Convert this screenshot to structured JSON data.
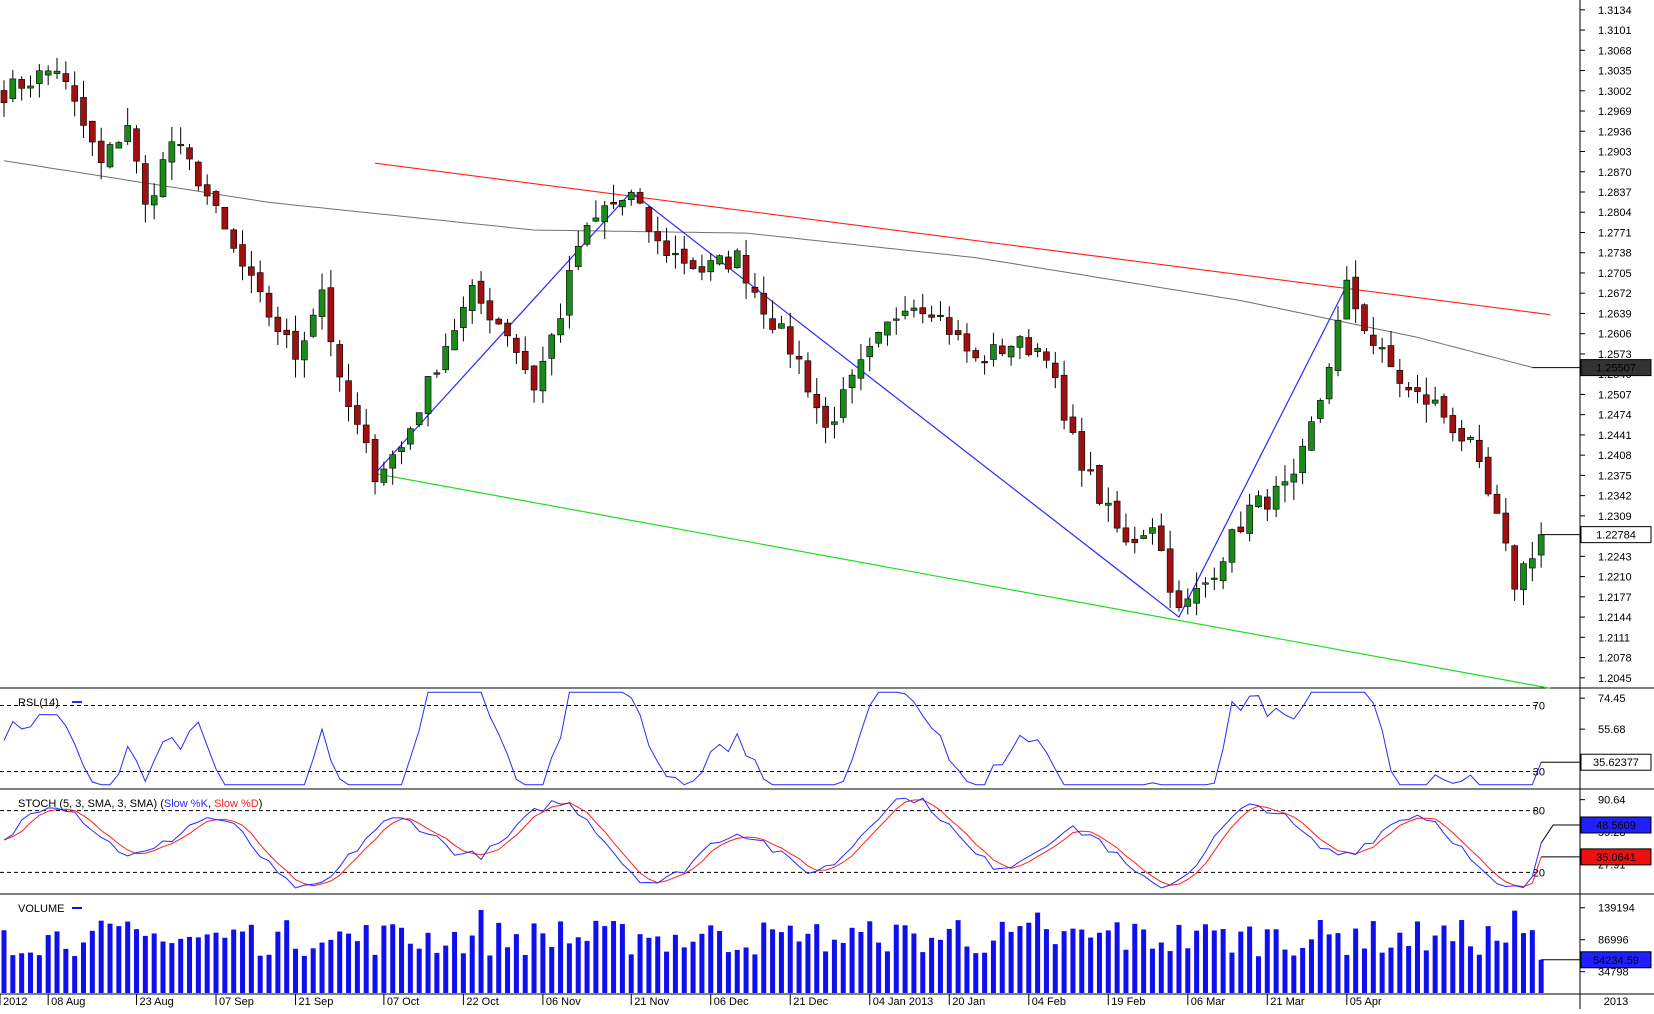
{
  "chart_data": {
    "type": "candlestick",
    "main": {
      "yticks": [
        "1.3134",
        "1.3101",
        "1.3068",
        "1.3035",
        "1.3002",
        "1.2969",
        "1.2936",
        "1.2903",
        "1.2870",
        "1.2837",
        "1.2804",
        "1.2771",
        "1.2738",
        "1.2705",
        "1.2672",
        "1.2639",
        "1.2606",
        "1.2573",
        "1.2540",
        "1.2507",
        "1.2474",
        "1.2441",
        "1.2408",
        "1.2375",
        "1.2342",
        "1.2309",
        "1.2276",
        "1.2243",
        "1.2210",
        "1.2177",
        "1.2144",
        "1.2111",
        "1.2078",
        "1.2045"
      ],
      "ylim": [
        1.203,
        1.315
      ],
      "ma_label": "1.25507",
      "ma_value": 1.25507,
      "last_label": "1.22784",
      "last_value": 1.22784,
      "colors": {
        "up": "#1a8a1a",
        "down": "#a01010",
        "ma": "#707070",
        "resistance": "#ff2020",
        "support": "#22dd22",
        "zigzag": "#2a2aff"
      },
      "resistance": [
        [
          42,
          1.2884
        ],
        [
          175,
          1.2637
        ]
      ],
      "support": [
        [
          42,
          1.2378
        ],
        [
          175,
          1.2028
        ]
      ],
      "zigzag": [
        [
          42,
          1.2378
        ],
        [
          71,
          1.2837
        ],
        [
          133,
          1.2144
        ],
        [
          152,
          1.2685
        ]
      ]
    },
    "rsi": {
      "label": "RSI (14)",
      "levels": [
        "70",
        "30"
      ],
      "yticks": [
        "74.45",
        "55.68"
      ],
      "ylim": [
        20,
        80
      ],
      "last_label": "35.62377",
      "last_value": 35.62,
      "color": "#2a2aff"
    },
    "stoch": {
      "label": "STOCH (5, 3, SMA, 3, SMA)",
      "label_k": "Slow %K",
      "label_d": "Slow %D",
      "levels": [
        "80",
        "20"
      ],
      "yticks": [
        "90.64",
        "59.28",
        "27.91"
      ],
      "ylim": [
        0,
        100
      ],
      "k_label": "48.5609",
      "d_label": "35.0641",
      "k_value": 48.56,
      "d_value": 35.06,
      "k_color": "#2a2aff",
      "d_color": "#ff2020"
    },
    "volume": {
      "label": "VOLUME",
      "yticks": [
        "139194",
        "86996",
        "34798"
      ],
      "ylim": [
        0,
        160000
      ],
      "last_label": "54234.59",
      "last_value": 54234.59,
      "color": "#1010ee"
    },
    "xticks": [
      "2012",
      "08 Aug",
      "23 Aug",
      "07 Sep",
      "21 Sep",
      "07 Oct",
      "22 Oct",
      "06 Nov",
      "21 Nov",
      "06 Dec",
      "21 Dec",
      "04 Jan 2013",
      "20 Jan",
      "04 Feb",
      "19 Feb",
      "06 Mar",
      "21 Mar",
      "05 Apr",
      "2013"
    ]
  }
}
